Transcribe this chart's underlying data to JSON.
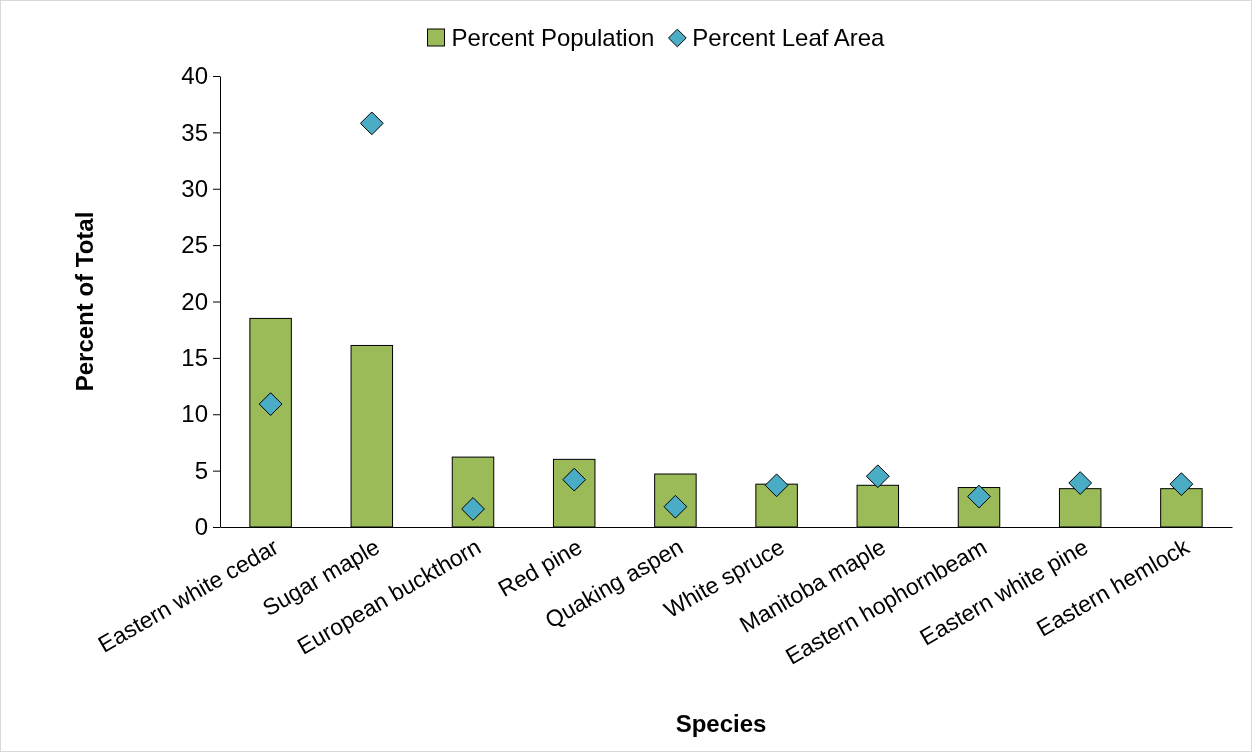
{
  "chart_data": {
    "type": "bar",
    "xlabel": "Species",
    "ylabel": "Percent of Total",
    "categories": [
      "Eastern white cedar",
      "Sugar maple",
      "European buckthorn",
      "Red pine",
      "Quaking aspen",
      "White spruce",
      "Manitoba maple",
      "Eastern hophornbeam",
      "Eastern white pine",
      "Eastern hemlock"
    ],
    "series": [
      {
        "name": "Percent Population",
        "color": "#9bbb59",
        "values": [
          18.5,
          16.1,
          6.2,
          6.0,
          4.7,
          3.8,
          3.7,
          3.5,
          3.4,
          3.4
        ]
      },
      {
        "name": "Percent Leaf Area",
        "type": "scatter",
        "color": "#4bacc6",
        "marker": "diamond",
        "x": [
          "Eastern white cedar",
          "Sugar maple",
          "European buckthorn",
          "Red pine",
          "Quaking aspen",
          "White spruce",
          "Manitoba maple",
          "Eastern hophornbeam",
          "Eastern white pine",
          "Eastern hemlock"
        ],
        "values": [
          10.9,
          35.8,
          1.6,
          4.2,
          1.8,
          3.7,
          4.5,
          2.7,
          3.9,
          3.8
        ]
      }
    ],
    "ylim": [
      0,
      40
    ],
    "yticks": [
      0,
      5,
      10,
      15,
      20,
      25,
      30,
      35,
      40
    ],
    "grid": false,
    "legend": "top"
  }
}
